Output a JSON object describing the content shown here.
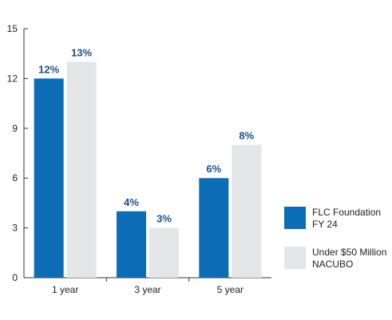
{
  "chart_data": {
    "type": "bar",
    "categories": [
      "1 year",
      "3 year",
      "5 year"
    ],
    "series": [
      {
        "name": "FLC Foundation\nFY 24",
        "values": [
          12,
          4,
          6
        ],
        "labels": [
          "12%",
          "4%",
          "6%"
        ],
        "color": "#0a6db5",
        "label_color": "#1a4f8a"
      },
      {
        "name": "Under $50 Million\nNACUBO",
        "values": [
          13,
          3,
          8
        ],
        "labels": [
          "13%",
          "3%",
          "8%"
        ],
        "color": "#e4e5e7",
        "label_color": "#1a4f8a"
      }
    ],
    "ylim": [
      0,
      15
    ],
    "yticks": [
      "0",
      "3",
      "6",
      "9",
      "12",
      "15"
    ],
    "ytick_values": [
      0,
      3,
      6,
      9,
      12,
      15
    ],
    "title": "",
    "xlabel": "",
    "ylabel": "",
    "grid": false,
    "legend_position": "right"
  }
}
